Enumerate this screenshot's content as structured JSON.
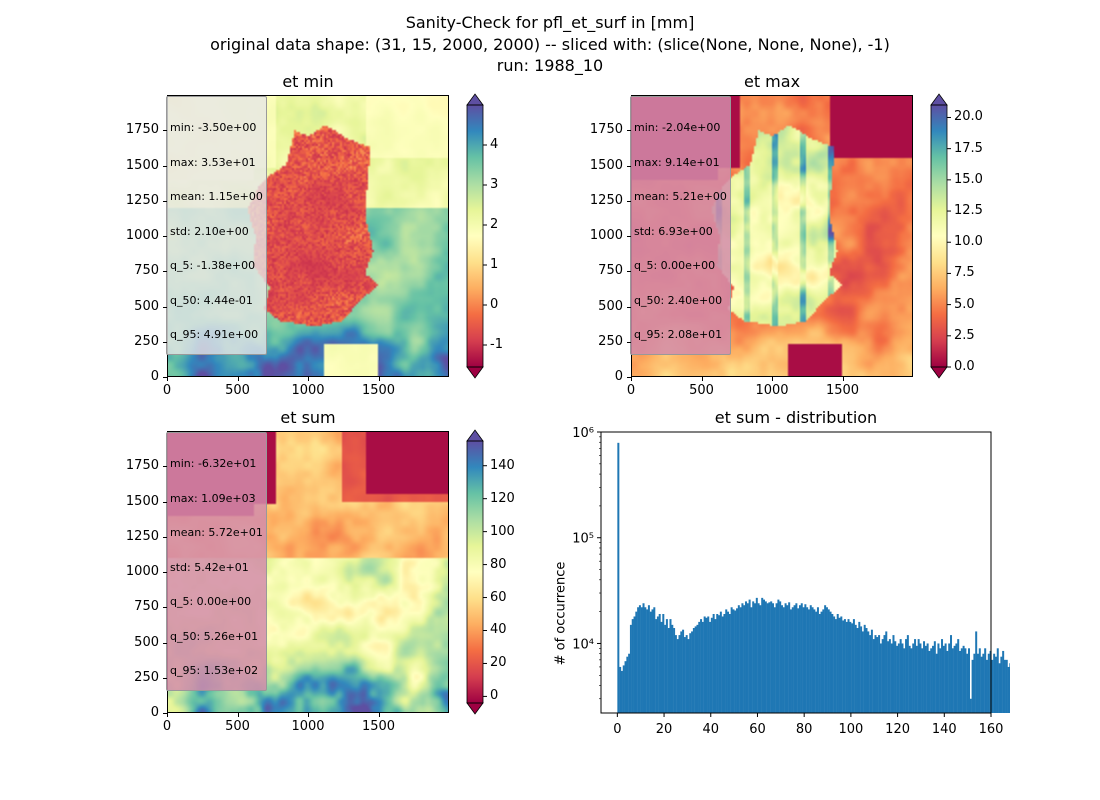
{
  "figure": {
    "title_lines": [
      "Sanity-Check for pfl_et_surf in [mm]",
      "original data shape: (31, 15, 2000, 2000) -- sliced with: (slice(None, None, None), -1)",
      "run: 1988_10"
    ]
  },
  "colormap": [
    "#9e0142",
    "#d53e4f",
    "#f46d43",
    "#fdae61",
    "#fee08b",
    "#ffffbf",
    "#e6f598",
    "#abdda4",
    "#66c2a5",
    "#3288bd",
    "#5e4fa2"
  ],
  "chart_data": [
    {
      "type": "heatmap",
      "title": "et min",
      "x_ticks": [
        0,
        500,
        1000,
        1500
      ],
      "y_ticks": [
        0,
        250,
        500,
        750,
        1000,
        1250,
        1500,
        1750
      ],
      "xlim": [
        0,
        2000
      ],
      "ylim": [
        0,
        2000
      ],
      "colorbar": {
        "min": -1.55,
        "max": 5.0,
        "ticks": [
          -1,
          0,
          1,
          2,
          3,
          4
        ],
        "extend": "both"
      },
      "stats": [
        "min: -3.50e+00",
        "max: 3.53e+01",
        "mean: 1.15e+00",
        "std: 2.10e+00",
        "q_5: -1.38e+00",
        "q_50: 4.44e-01",
        "q_95: 4.91e+00"
      ],
      "stats_style": "light"
    },
    {
      "type": "heatmap",
      "title": "et max",
      "x_ticks": [
        0,
        500,
        1000,
        1500
      ],
      "y_ticks": [
        0,
        250,
        500,
        750,
        1000,
        1250,
        1500,
        1750
      ],
      "xlim": [
        0,
        2000
      ],
      "ylim": [
        0,
        2000
      ],
      "colorbar": {
        "min": 0,
        "max": 21.0,
        "ticks": [
          "0.0",
          "2.5",
          "5.0",
          "7.5",
          "10.0",
          "12.5",
          "15.0",
          "17.5",
          "20.0"
        ],
        "extend": "both"
      },
      "stats": [
        "min: -2.04e+00",
        "max: 9.14e+01",
        "mean: 5.21e+00",
        "std: 6.93e+00",
        "q_5: 0.00e+00",
        "q_50: 2.40e+00",
        "q_95: 2.08e+01"
      ],
      "stats_style": "pink"
    },
    {
      "type": "heatmap",
      "title": "et sum",
      "x_ticks": [
        0,
        500,
        1000,
        1500
      ],
      "y_ticks": [
        0,
        250,
        500,
        750,
        1000,
        1250,
        1500,
        1750
      ],
      "xlim": [
        0,
        2000
      ],
      "ylim": [
        0,
        2000
      ],
      "colorbar": {
        "min": -4,
        "max": 155,
        "ticks": [
          0,
          20,
          40,
          60,
          80,
          100,
          120,
          140
        ],
        "extend": "both"
      },
      "stats": [
        "min: -6.32e+01",
        "max: 1.09e+03",
        "mean: 5.72e+01",
        "std: 5.42e+01",
        "q_5: 0.00e+00",
        "q_50: 5.26e+01",
        "q_95: 1.53e+02"
      ],
      "stats_style": "pink"
    },
    {
      "type": "bar",
      "title": "et sum - distribution",
      "ylabel": "# of occurrence",
      "yscale": "log",
      "xlim": [
        -7,
        160
      ],
      "ylim": [
        2200,
        1000000
      ],
      "x_ticks": [
        0,
        20,
        40,
        60,
        80,
        100,
        120,
        140,
        160
      ],
      "y_ticks": [
        {
          "value": 10000,
          "label": "10⁴"
        },
        {
          "value": 100000,
          "label": "10⁵"
        },
        {
          "value": 1000000,
          "label": "10⁶"
        }
      ],
      "bar_color": "#1f77b4",
      "bin_width": 0.77,
      "series": [
        {
          "x_start": 0,
          "values": [
            790000,
            6000,
            5500,
            6200,
            6800,
            7500,
            8000,
            15000,
            17000,
            18000,
            20000,
            22000,
            23000,
            22000,
            24000,
            22000,
            21000,
            23000,
            20000,
            21000,
            22000,
            17000,
            18000,
            19000,
            16000,
            19000,
            15000,
            17000,
            14000,
            17000,
            15000,
            14000,
            12000,
            11000,
            12000,
            13000,
            13500,
            11500,
            12000,
            11000,
            12500,
            13000,
            14000,
            14500,
            15000,
            16000,
            17000,
            16000,
            18000,
            17500,
            18000,
            16000,
            17500,
            19000,
            17000,
            19000,
            18500,
            20000,
            18000,
            19000,
            21000,
            20000,
            19000,
            22000,
            21000,
            20500,
            21500,
            23000,
            22000,
            24000,
            23000,
            25000,
            24000,
            26000,
            22000,
            25000,
            24000,
            27000,
            24000,
            23000,
            27000,
            26000,
            25000,
            24000,
            24500,
            25000,
            24000,
            22000,
            24000,
            26000,
            25000,
            23000,
            22000,
            24000,
            23000,
            24500,
            21000,
            22000,
            23000,
            24000,
            21500,
            23000,
            24000,
            22000,
            23500,
            22000,
            21000,
            23000,
            22000,
            21000,
            20000,
            22000,
            19000,
            20000,
            21000,
            23000,
            22000,
            21000,
            20000,
            19000,
            18000,
            17000,
            19000,
            17500,
            18000,
            16500,
            17000,
            16000,
            17000,
            16000,
            15500,
            17000,
            15000,
            14000,
            16000,
            14500,
            13000,
            15000,
            14000,
            13000,
            12000,
            13500,
            11000,
            12000,
            11500,
            12000,
            10000,
            11000,
            12000,
            13000,
            10500,
            11000,
            10000,
            12000,
            10500,
            9500,
            10000,
            11000,
            10000,
            9000,
            11000,
            12000,
            9500,
            9000,
            10000,
            11000,
            9500,
            11000,
            10000,
            9000,
            10500,
            9500,
            10000,
            8500,
            9000,
            9500,
            10500,
            8000,
            10000,
            9000,
            11000,
            9500,
            10000,
            8500,
            10000,
            12000,
            9000,
            9500,
            10000,
            11000,
            8500,
            9000,
            9500,
            9000,
            8000,
            9000,
            3000,
            7000,
            8000,
            13000,
            8000,
            9000,
            7500,
            8000,
            9000,
            7000,
            8000,
            8500,
            7000,
            8000,
            7500,
            9000,
            6500,
            7500,
            8500,
            7000,
            7000,
            6000,
            6500,
            7000,
            5000,
            7500,
            6500,
            6000,
            4000,
            6500,
            5000,
            4000,
            7000
          ]
        }
      ]
    }
  ]
}
